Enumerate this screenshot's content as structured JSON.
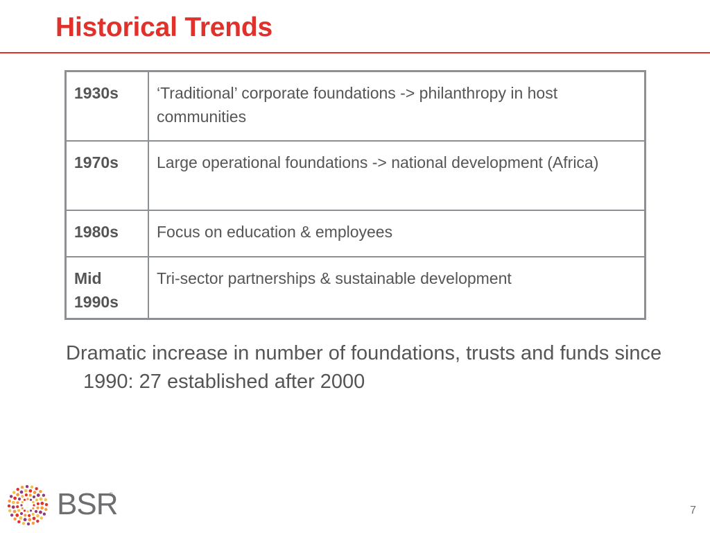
{
  "slide": {
    "title": "Historical Trends",
    "page_number": "7"
  },
  "table": {
    "rows": [
      {
        "era": "1930s",
        "description": "‘Traditional’ corporate foundations -> philanthropy in host communities"
      },
      {
        "era": "1970s",
        "description": "Large operational foundations -> national development (Africa)"
      },
      {
        "era": "1980s",
        "description": "Focus on education & employees"
      },
      {
        "era": "Mid 1990s",
        "description": "Tri-sector partnerships & sustainable development"
      }
    ]
  },
  "bullet": {
    "text": "Dramatic increase in number of foundations, trusts and funds since 1990: 27 established after 2000"
  },
  "logo": {
    "text": "BSR",
    "mark": "®",
    "icon": "bsr-starburst-icon",
    "colors": [
      "#e0312b",
      "#f39c3d",
      "#8e3a7d",
      "#f2c14e"
    ]
  },
  "colors": {
    "title": "#e0312b",
    "rule": "#e0312b",
    "table_border": "#8c8f94",
    "text": "#555555"
  }
}
